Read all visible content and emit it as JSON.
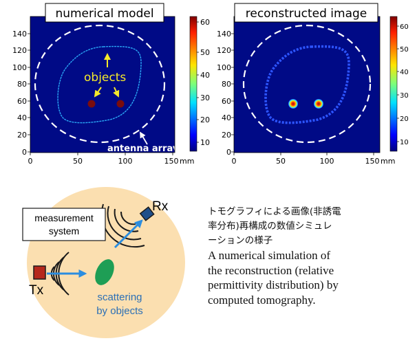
{
  "panels": [
    {
      "title": "numerical model",
      "x_ticks": [
        "0",
        "50",
        "100",
        "150"
      ],
      "x_unit": "mm",
      "y_ticks": [
        "0",
        "20",
        "40",
        "60",
        "80",
        "100",
        "120",
        "140"
      ],
      "colorbar_ticks": [
        "10",
        "20",
        "30",
        "40",
        "50",
        "60"
      ],
      "annotations": {
        "objects": "objects",
        "antenna_array": "antenna array"
      }
    },
    {
      "title": "reconstructed image",
      "x_ticks": [
        "0",
        "50",
        "100",
        "150"
      ],
      "x_unit": "mm",
      "y_ticks": [
        "0",
        "20",
        "40",
        "60",
        "80",
        "100",
        "120",
        "140"
      ],
      "colorbar_ticks": [
        "10",
        "20",
        "30",
        "40",
        "50",
        "60"
      ]
    }
  ],
  "colors": {
    "background": "#000a86",
    "object": "#7a0d0d",
    "boundary": "#2aa7f5",
    "medium": "#fbdfb0",
    "arrow": "#2b8de0",
    "scatter": "#1e9e55"
  },
  "diagram": {
    "measurement_system": [
      "measurement",
      "system"
    ],
    "tx": "Tx",
    "rx": "Rx",
    "scattering": [
      "scattering",
      "by objects"
    ]
  },
  "caption": {
    "jp": [
      "トモグラフィによる画像(非誘電",
      "率分布)再構成の数値シミュレ",
      "ーションの様子"
    ],
    "en": [
      "A numerical simulation of",
      "the reconstruction (relative",
      "permittivity distribution) by",
      "computed tomography."
    ]
  }
}
